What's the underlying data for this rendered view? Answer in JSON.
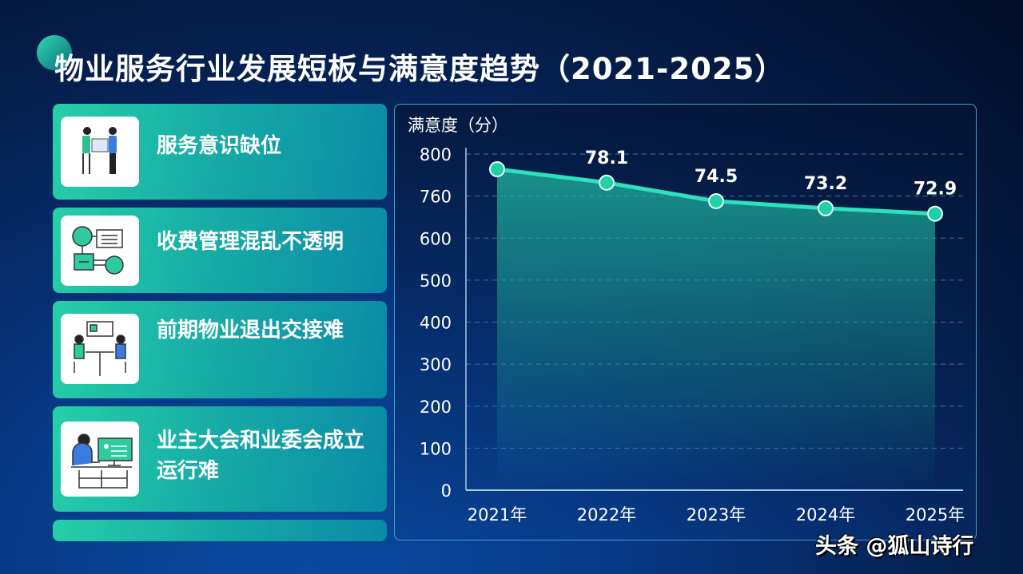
{
  "title": "物业服务行业发展短板与满意度趋势（2021-2025）",
  "cards": [
    {
      "label": "服务意识缺位",
      "icon": "people-handover-icon"
    },
    {
      "label": "收费管理混乱不透明",
      "icon": "flowchart-icon"
    },
    {
      "label": "前期物业退出交接难",
      "icon": "meeting-table-icon"
    },
    {
      "label": "业主大会和业委会成立运行难",
      "icon": "person-computer-icon"
    },
    {
      "label": "",
      "icon": ""
    }
  ],
  "watermark": "头条 @狐山诗行",
  "colors": {
    "accent": "#2fe0c0",
    "card": "#1bbfa8",
    "background": "#062a6a"
  },
  "chart_data": {
    "type": "area",
    "ylabel": "满意度（分）",
    "xlabel": "",
    "categories": [
      "2021年",
      "2022年",
      "2023年",
      "2024年",
      "2025年"
    ],
    "values": [
      null,
      78.1,
      74.5,
      73.2,
      72.9
    ],
    "data_labels": [
      "",
      "78.1",
      "74.5",
      "73.2",
      "72.9"
    ],
    "y_tick_labels": [
      "800",
      "760",
      "600",
      "500",
      "400",
      "300",
      "200",
      "100",
      "0"
    ],
    "grid": true,
    "legend": "none"
  }
}
